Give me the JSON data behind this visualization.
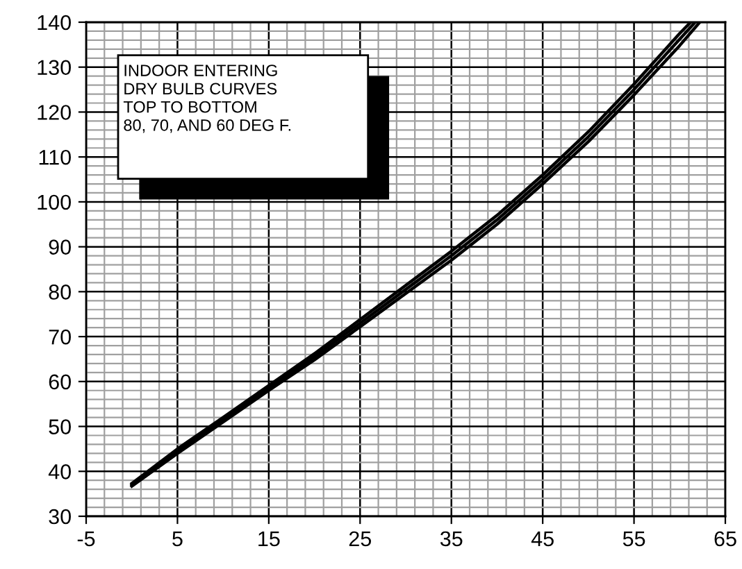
{
  "chart_data": {
    "type": "line",
    "annotations": [
      "INDOOR ENTERING\nDRY BULB CURVES\nTOP TO BOTTOM\n80, 70, AND 60 DEG F."
    ],
    "series": [
      {
        "color": "#000000",
        "x": [
          0,
          5,
          10,
          15,
          20,
          25,
          30,
          35,
          40,
          45,
          50,
          55,
          60,
          61.2
        ],
        "values": [
          37.3,
          45,
          52,
          59.1,
          66.2,
          73.8,
          81.4,
          89,
          97,
          106,
          115.6,
          126.2,
          137.5,
          140
        ]
      },
      {
        "color": "#000000",
        "x": [
          0,
          5,
          10,
          15,
          20,
          25,
          30,
          35,
          40,
          45,
          50,
          55,
          60,
          61.7
        ],
        "values": [
          37,
          44.5,
          51.5,
          58.5,
          65.5,
          73,
          80.5,
          88,
          96,
          105,
          114.5,
          125,
          136.2,
          140
        ]
      },
      {
        "color": "#000000",
        "x": [
          0,
          5,
          10,
          15,
          20,
          25,
          30,
          35,
          40,
          45,
          50,
          55,
          60,
          62.2
        ],
        "values": [
          36.7,
          44,
          51,
          58,
          64.8,
          72.2,
          79.6,
          87,
          95,
          104,
          113.4,
          123.8,
          134.8,
          140
        ]
      }
    ],
    "xlim": [
      -5,
      65
    ],
    "xticks": [
      -5,
      5,
      15,
      25,
      35,
      45,
      55,
      65
    ],
    "ylim": [
      30,
      140
    ],
    "yticks": [
      30,
      40,
      50,
      60,
      70,
      80,
      90,
      100,
      110,
      120,
      130,
      140
    ],
    "grid": true,
    "marker": "none",
    "line_style": "solid"
  }
}
